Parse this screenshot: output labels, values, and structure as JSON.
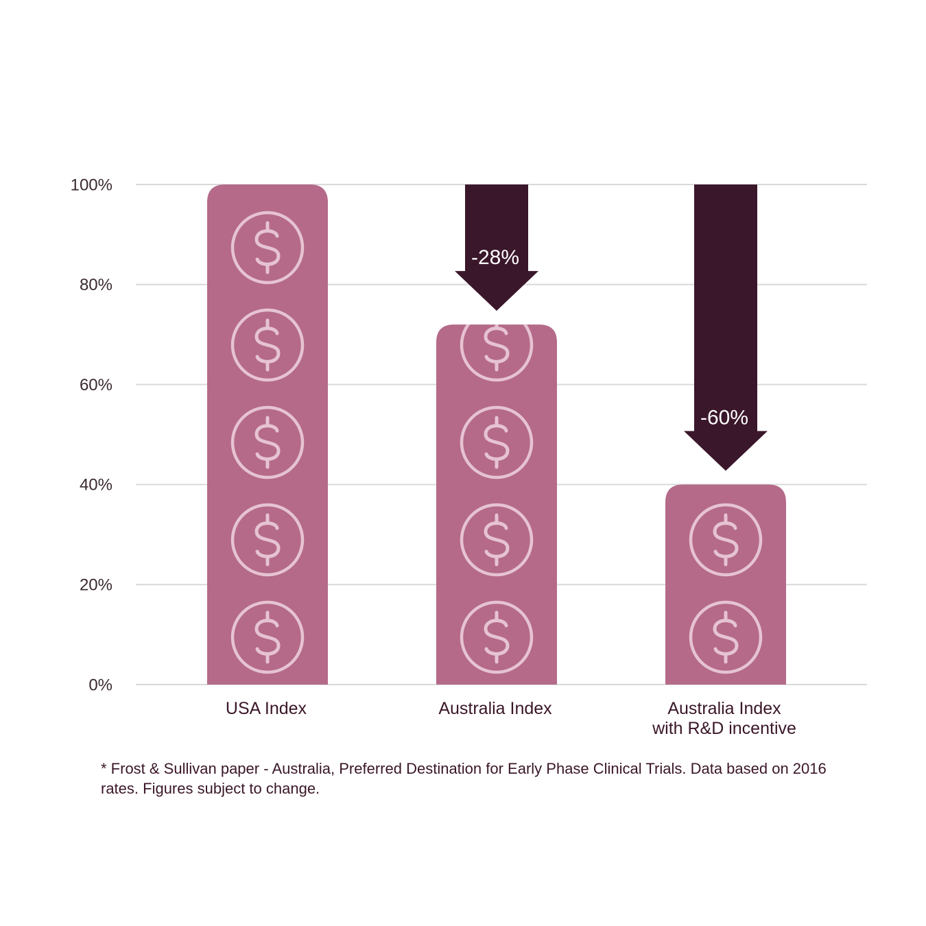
{
  "chart_data": {
    "type": "bar",
    "categories": [
      "USA Index",
      "Australia Index",
      "Australia Index\nwith R&D incentive"
    ],
    "values": [
      100,
      72,
      40
    ],
    "ylim": [
      0,
      100
    ],
    "yticks": [
      0,
      20,
      40,
      60,
      80,
      100
    ],
    "ytick_labels": [
      "0%",
      "20%",
      "40%",
      "60%",
      "80%",
      "100%"
    ],
    "grid": true,
    "annotations": [
      {
        "category_index": 1,
        "text": "-28%",
        "from": 100,
        "to": 72
      },
      {
        "category_index": 2,
        "text": "-60%",
        "from": 100,
        "to": 40
      }
    ],
    "icons_per_bar": [
      5,
      4,
      2
    ],
    "bar_icon": "dollar-coin-icon",
    "colors": {
      "bar": "#b56a89",
      "arrow": "#3b172b",
      "icon": "#e6c3d2",
      "grid": "#d9d9d9"
    }
  },
  "footnote": "* Frost & Sullivan paper - Australia, Preferred Destination for Early Phase Clinical Trials. Data based on 2016 rates. Figures subject to change."
}
